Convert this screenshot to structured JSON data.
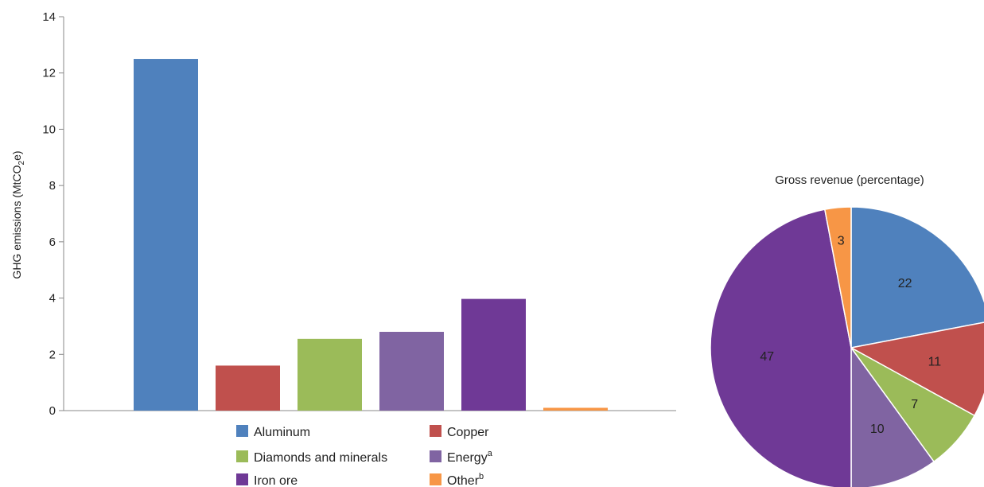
{
  "chart_data": [
    {
      "type": "bar",
      "ylabel_main": "GHG emissions (MtCO",
      "ylabel_sub": "2",
      "ylabel_tail": "e)",
      "ylim": [
        0,
        14
      ],
      "yticks": [
        "0",
        "2",
        "4",
        "6",
        "8",
        "10",
        "12",
        "14"
      ],
      "grid": false,
      "categories": [
        "Aluminum",
        "Copper",
        "Diamonds and minerals",
        "Energy",
        "Iron ore",
        "Other"
      ],
      "category_sup": [
        "",
        "",
        "",
        "a",
        "",
        "b"
      ],
      "values": [
        12.5,
        1.6,
        2.55,
        2.8,
        3.97,
        0.1
      ],
      "colors": [
        "#4F81BD",
        "#C0504D",
        "#9BBB59",
        "#8064A2",
        "#6F3996",
        "#F79646"
      ],
      "legend_position": "bottom"
    },
    {
      "type": "pie",
      "title": "Gross revenue (percentage)",
      "labels": [
        "Aluminum",
        "Copper",
        "Diamonds and minerals",
        "Energy",
        "Iron ore",
        "Other"
      ],
      "values": [
        22,
        11,
        7,
        10,
        47,
        3
      ],
      "value_labels": [
        "22",
        "11",
        "7",
        "10",
        "47",
        "3"
      ],
      "colors": [
        "#4F81BD",
        "#C0504D",
        "#9BBB59",
        "#8064A2",
        "#6F3996",
        "#F79646"
      ]
    }
  ]
}
